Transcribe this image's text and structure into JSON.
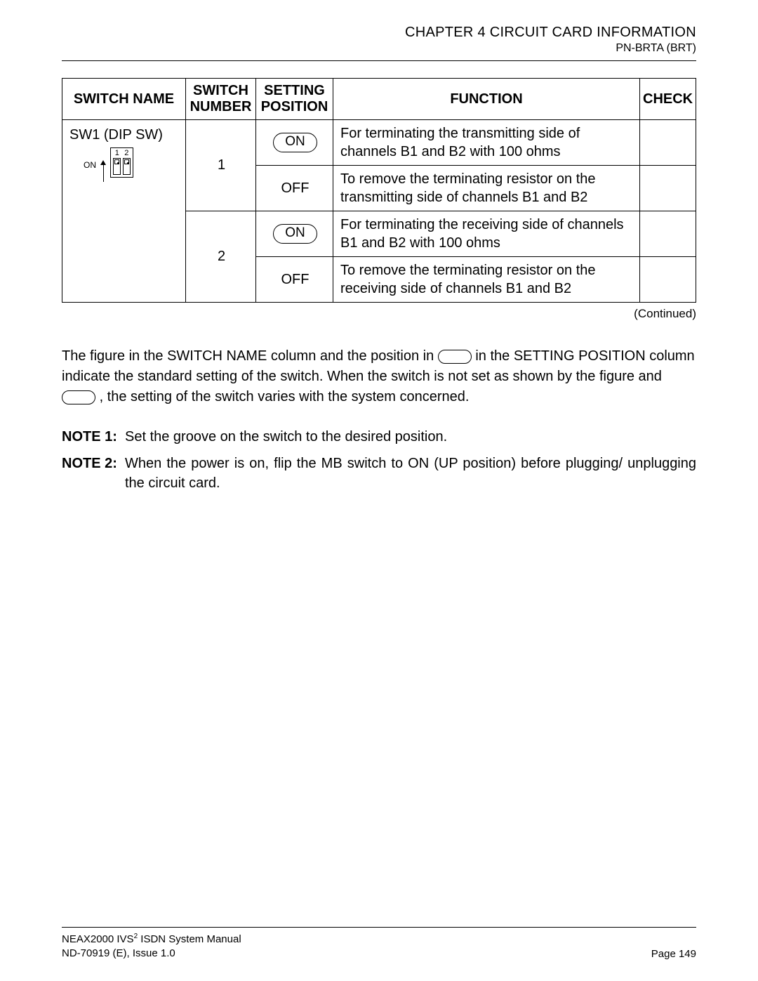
{
  "header": {
    "chapter": "CHAPTER 4  CIRCUIT CARD INFORMATION",
    "card": "PN-BRTA (BRT)"
  },
  "table": {
    "columns": {
      "switch_name": "SWITCH NAME",
      "switch_number_l1": "SWITCH",
      "switch_number_l2": "NUMBER",
      "setting_pos_l1": "SETTING",
      "setting_pos_l2": "POSITION",
      "function": "FUNCTION",
      "check": "CHECK"
    },
    "switch_name_label": "SW1 (DIP SW)",
    "dip": {
      "on_label": "ON",
      "num1": "1",
      "num2": "2"
    },
    "rows": [
      {
        "number": "1",
        "settings": [
          {
            "label": "ON",
            "pill": true,
            "function": "For terminating the transmitting side of channels B1 and B2 with 100 ohms"
          },
          {
            "label": "OFF",
            "pill": false,
            "function": "To remove the terminating resistor on the transmitting side of channels B1 and B2"
          }
        ]
      },
      {
        "number": "2",
        "settings": [
          {
            "label": "ON",
            "pill": true,
            "function": "For terminating the receiving side of channels B1 and B2 with 100 ohms"
          },
          {
            "label": "OFF",
            "pill": false,
            "function": "To remove the terminating resistor on the receiving side of channels B1 and B2"
          }
        ]
      }
    ],
    "continued": "(Continued)"
  },
  "body": {
    "para1a": "The figure in the SWITCH NAME column and the position in ",
    "para1b": " in the SETTING POSITION column indicate the standard setting of the switch. When the switch is not set as shown by the figure and ",
    "para1c": " , the setting of the switch varies with the system concerned."
  },
  "notes": [
    {
      "label": "NOTE 1:",
      "text": "Set the groove on the switch to the desired position."
    },
    {
      "label": "NOTE 2:",
      "text": "When the power is on, flip the MB switch to ON (UP position) before plugging/ unplugging the circuit card."
    }
  ],
  "footer": {
    "manual_a": "NEAX2000 IVS",
    "manual_sup": "2",
    "manual_b": " ISDN System Manual",
    "issue": "ND-70919 (E), Issue 1.0",
    "page": "Page 149"
  }
}
